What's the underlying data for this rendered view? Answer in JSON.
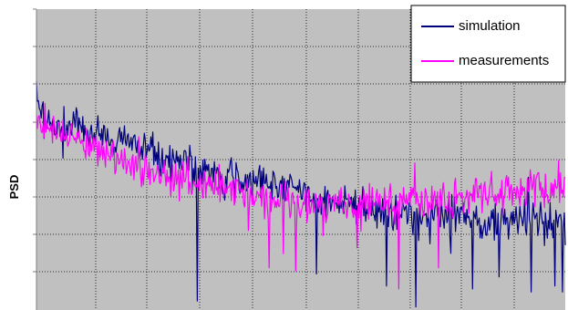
{
  "chart_data": {
    "type": "line",
    "xlabel": "",
    "ylabel": "PSD",
    "xlim": [
      0,
      1
    ],
    "ylim": [
      0,
      1
    ],
    "grid": true,
    "legend_position": "top-right",
    "x_samples": 560,
    "series": [
      {
        "name": "simulation",
        "color": "#00007f",
        "trend": [
          [
            0.0,
            0.3
          ],
          [
            0.03,
            0.38
          ],
          [
            0.07,
            0.4
          ],
          [
            0.13,
            0.43
          ],
          [
            0.19,
            0.45
          ],
          [
            0.27,
            0.5
          ],
          [
            0.33,
            0.55
          ],
          [
            0.38,
            0.57
          ],
          [
            0.45,
            0.6
          ],
          [
            0.52,
            0.62
          ],
          [
            0.62,
            0.67
          ],
          [
            0.72,
            0.68
          ],
          [
            0.82,
            0.7
          ],
          [
            0.92,
            0.7
          ],
          [
            1.0,
            0.71
          ]
        ],
        "noise": 0.055,
        "dips": [
          [
            0.305,
            0.97
          ],
          [
            0.53,
            0.88
          ],
          [
            0.662,
            0.92
          ],
          [
            0.718,
            0.99
          ],
          [
            0.825,
            0.93
          ],
          [
            0.875,
            0.89
          ],
          [
            0.935,
            0.94
          ],
          [
            0.98,
            0.92
          ],
          [
            0.995,
            0.94
          ]
        ]
      },
      {
        "name": "measurements",
        "color": "#ff00ff",
        "trend": [
          [
            0.0,
            0.37
          ],
          [
            0.04,
            0.4
          ],
          [
            0.1,
            0.44
          ],
          [
            0.17,
            0.52
          ],
          [
            0.23,
            0.55
          ],
          [
            0.3,
            0.57
          ],
          [
            0.38,
            0.61
          ],
          [
            0.46,
            0.64
          ],
          [
            0.56,
            0.65
          ],
          [
            0.66,
            0.64
          ],
          [
            0.76,
            0.63
          ],
          [
            0.86,
            0.62
          ],
          [
            0.94,
            0.6
          ],
          [
            1.0,
            0.59
          ]
        ],
        "noise": 0.05,
        "dips": [
          [
            0.44,
            0.86
          ],
          [
            0.49,
            0.87
          ],
          [
            0.685,
            0.93
          ],
          [
            0.76,
            0.86
          ]
        ]
      }
    ]
  }
}
